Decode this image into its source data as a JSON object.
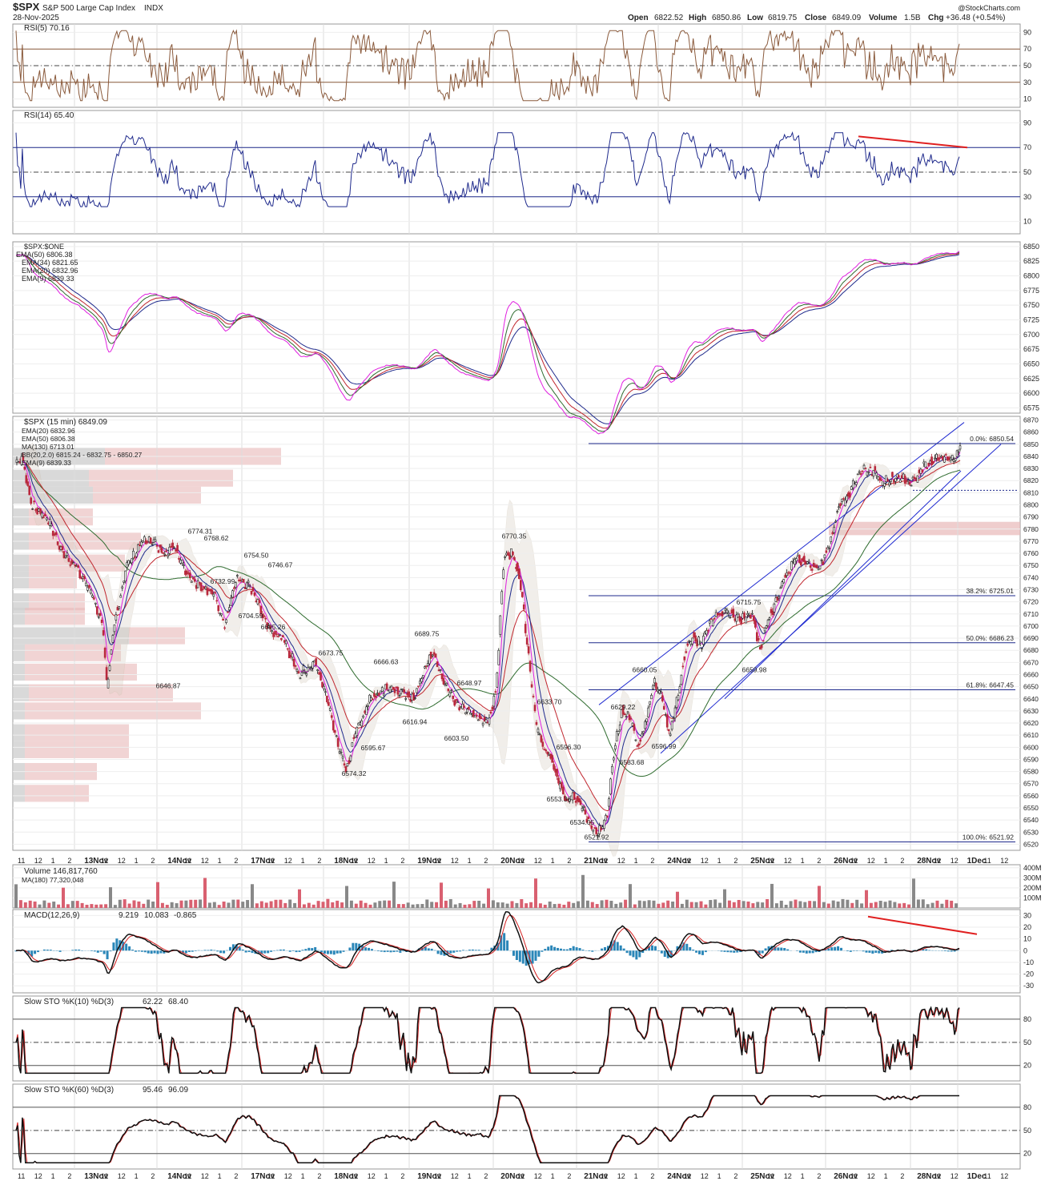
{
  "header": {
    "symbol": "$SPX",
    "name": "S&P 500 Large Cap Index",
    "exchange": "INDX",
    "date": "28-Nov-2025",
    "watermark": "@StockCharts.com",
    "ohlc": {
      "open_label": "Open",
      "open": "6822.52",
      "high_label": "High",
      "high": "6850.86",
      "low_label": "Low",
      "low": "6819.75",
      "close_label": "Close",
      "close": "6849.09",
      "volume_label": "Volume",
      "volume": "1.5B",
      "chg_label": "Chg",
      "chg": "+36.48 (+0.54%)"
    }
  },
  "colors": {
    "up": "#1a1a1a",
    "down": "#b8283c",
    "ema20": "#1f2a8c",
    "ema50": "#c0262e",
    "ma130": "#2e6b2e",
    "ema9": "#e020e0",
    "rsi5": "#8a5a3c",
    "rsi14": "#1f2a8c",
    "macd": "#111111",
    "signal": "#d42020",
    "hist": "#2a86b8",
    "grid": "#dddddd"
  },
  "x_axis": {
    "labels": [
      "11",
      "12",
      "1",
      "2",
      "13Nov",
      "11",
      "12",
      "1",
      "2",
      "14Nov",
      "11",
      "12",
      "1",
      "2",
      "17Nov",
      "11",
      "12",
      "1",
      "2",
      "18Nov",
      "11",
      "12",
      "1",
      "2",
      "19Nov",
      "11",
      "12",
      "1",
      "2",
      "20Nov",
      "11",
      "12",
      "1",
      "2",
      "21Nov",
      "11",
      "12",
      "1",
      "2",
      "24Nov",
      "11",
      "12",
      "1",
      "2",
      "25Nov",
      "11",
      "12",
      "1",
      "2",
      "26Nov",
      "11",
      "12",
      "1",
      "2",
      "28Nov",
      "11",
      "12",
      "1Dec",
      "11",
      "12",
      "1"
    ],
    "sessions": [
      "13Nov",
      "14Nov",
      "17Nov",
      "18Nov",
      "19Nov",
      "20Nov",
      "21Nov",
      "24Nov",
      "25Nov",
      "26Nov",
      "28Nov",
      "1Dec"
    ]
  },
  "panels": {
    "rsi5": {
      "title": "RSI(5) 70.16",
      "ticks": [
        "90",
        "70",
        "50",
        "30",
        "10"
      ]
    },
    "rsi14": {
      "title": "RSI(14) 65.40",
      "ticks": [
        "90",
        "70",
        "50",
        "30",
        "10"
      ]
    },
    "ema_panel": {
      "title": "$SPX:$ONE",
      "legend": [
        "EMA(50) 6806.38",
        "EMA(34) 6821.65",
        "EMA(20) 6832.96",
        "EMA(9) 6839.33"
      ],
      "ticks": [
        "6850",
        "6825",
        "6800",
        "6775",
        "6750",
        "6725",
        "6700",
        "6675",
        "6650",
        "6625",
        "6600",
        "6575"
      ]
    },
    "price": {
      "title": "$SPX (15 min) 6849.09",
      "legend": [
        "EMA(20) 6832.96",
        "EMA(50) 6806.38",
        "MA(130) 6713.01",
        "BB(20,2.0) 6815.24 - 6832.75 - 6850.27",
        "EMA(9) 6839.33"
      ],
      "ticks": [
        "6870",
        "6860",
        "6850",
        "6840",
        "6830",
        "6820",
        "6810",
        "6800",
        "6790",
        "6780",
        "6770",
        "6760",
        "6750",
        "6740",
        "6730",
        "6720",
        "6710",
        "6700",
        "6690",
        "6680",
        "6670",
        "6660",
        "6650",
        "6640",
        "6630",
        "6620",
        "6610",
        "6600",
        "6590",
        "6580",
        "6570",
        "6560",
        "6550",
        "6540",
        "6530",
        "6520"
      ]
    },
    "volume": {
      "title": "Volume 146,817,760",
      "ma": "MA(180) 77,320,048",
      "ticks": [
        "400M",
        "300M",
        "200M",
        "100M"
      ]
    },
    "macd": {
      "title": "MACD(12,26,9)",
      "macd_val": "9.219",
      "signal_val": "10.083",
      "hist_val": "-0.865",
      "ticks": [
        "30",
        "20",
        "10",
        "0",
        "-10",
        "-20",
        "-30"
      ]
    },
    "sto10": {
      "title": "Slow STO %K(10) %D(3)",
      "k_val": "62.22",
      "d_val": "68.40",
      "ticks": [
        "80",
        "50",
        "20"
      ]
    },
    "sto60": {
      "title": "Slow STO %K(60) %D(3)",
      "k_val": "95.46",
      "d_val": "96.09",
      "ticks": [
        "80",
        "50",
        "20"
      ]
    }
  },
  "annotations": [
    {
      "label": "6774.31",
      "x": "14Nov 12",
      "y": 6774.31
    },
    {
      "label": "6768.62",
      "x": "17Nov 9:45",
      "y": 6768.62
    },
    {
      "label": "6754.50",
      "x": "17Nov 12",
      "y": 6754.5
    },
    {
      "label": "6746.67",
      "x": "17Nov 2",
      "y": 6746.67
    },
    {
      "label": "6732.99",
      "x": "17Nov 10",
      "y": 6732.99
    },
    {
      "label": "6704.59",
      "x": "17Nov 11",
      "y": 6704.59
    },
    {
      "label": "6695.26",
      "x": "17Nov 1",
      "y": 6695.26
    },
    {
      "label": "6673.75",
      "x": "18Nov 10",
      "y": 6673.75
    },
    {
      "label": "6666.63",
      "x": "18Nov 2",
      "y": 6666.63
    },
    {
      "label": "6646.87",
      "x": "14Nov 9:45",
      "y": 6646.87
    },
    {
      "label": "6689.75",
      "x": "19Nov 1",
      "y": 6689.75
    },
    {
      "label": "6648.97",
      "x": "19Nov 3",
      "y": 6648.97
    },
    {
      "label": "6616.94",
      "x": "19Nov 10",
      "y": 6616.94
    },
    {
      "label": "6603.50",
      "x": "19Nov 2",
      "y": 6603.5
    },
    {
      "label": "6595.67",
      "x": "18Nov 1",
      "y": 6595.67
    },
    {
      "label": "6574.32",
      "x": "18Nov 12",
      "y": 6574.32
    },
    {
      "label": "6770.35",
      "x": "20Nov 9:45",
      "y": 6770.35
    },
    {
      "label": "6633.70",
      "x": "20Nov 12",
      "y": 6633.7
    },
    {
      "label": "6596.30",
      "x": "20Nov 1",
      "y": 6596.3
    },
    {
      "label": "6553.36",
      "x": "20Nov 2",
      "y": 6553.36
    },
    {
      "label": "6534.05",
      "x": "20Nov 3",
      "y": 6534.05
    },
    {
      "label": "6521.92",
      "x": "21Nov 10",
      "y": 6521.92
    },
    {
      "label": "6629.22",
      "x": "21Nov 12",
      "y": 6629.22
    },
    {
      "label": "6660.05",
      "x": "21Nov 2",
      "y": 6660.05
    },
    {
      "label": "6583.68",
      "x": "21Nov 1",
      "y": 6583.68
    },
    {
      "label": "6596.99",
      "x": "21Nov 3",
      "y": 6596.99
    },
    {
      "label": "6715.75",
      "x": "24Nov 2",
      "y": 6715.75
    },
    {
      "label": "6659.98",
      "x": "25Nov 11",
      "y": 6659.98
    }
  ],
  "fib_levels": [
    {
      "label": "0.0%: 6850.54",
      "value": 6850.54
    },
    {
      "label": "38.2%: 6725.01",
      "value": 6725.01
    },
    {
      "label": "50.0%: 6686.23",
      "value": 6686.23
    },
    {
      "label": "61.8%: 6647.45",
      "value": 6647.45
    },
    {
      "label": "100.0%: 6521.92",
      "value": 6521.92
    }
  ],
  "chart_data": {
    "type": "line",
    "title": "$SPX (15 min) 6849.09",
    "x": [
      "13Nov 09:30",
      "13Nov 12:00",
      "13Nov 16:00",
      "14Nov 09:30",
      "14Nov 10:00",
      "14Nov 12:00",
      "14Nov 16:00",
      "17Nov 09:30",
      "17Nov 11:00",
      "17Nov 14:00",
      "17Nov 16:00",
      "18Nov 09:30",
      "18Nov 10:30",
      "18Nov 12:00",
      "18Nov 14:00",
      "18Nov 16:00",
      "19Nov 10:00",
      "19Nov 13:00",
      "19Nov 16:00",
      "20Nov 09:45",
      "20Nov 12:00",
      "20Nov 14:00",
      "20Nov 16:00",
      "21Nov 10:00",
      "21Nov 13:00",
      "21Nov 16:00",
      "24Nov 10:00",
      "24Nov 13:00",
      "24Nov 16:00",
      "25Nov 10:00",
      "25Nov 13:00",
      "25Nov 16:00",
      "26Nov 10:00",
      "26Nov 13:00",
      "26Nov 16:00",
      "28Nov 10:00",
      "28Nov 13:00"
    ],
    "series": [
      {
        "name": "$SPX (15 min)",
        "values": [
          6832,
          6790,
          6745,
          6730,
          6652,
          6765,
          6750,
          6768,
          6720,
          6700,
          6690,
          6675,
          6645,
          6590,
          6630,
          6658,
          6640,
          6685,
          6630,
          6765,
          6700,
          6600,
          6540,
          6530,
          6640,
          6620,
          6680,
          6700,
          6712,
          6700,
          6730,
          6760,
          6800,
          6830,
          6822,
          6823,
          6849
        ]
      }
    ],
    "ylim": [
      6515,
      6873
    ],
    "ylabel": "",
    "xlabel": ""
  }
}
